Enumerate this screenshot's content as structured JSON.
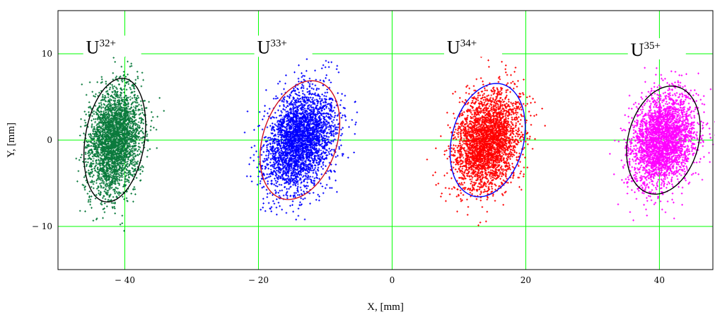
{
  "chart_data": {
    "type": "scatter",
    "title": "",
    "xlabel": "X, [mm]",
    "ylabel": "Y, [mm]",
    "xlim": [
      -50,
      48
    ],
    "ylim": [
      -15,
      15
    ],
    "grid": true,
    "grid_color": "#00ff00",
    "x_ticks": [
      -40,
      -20,
      0,
      20,
      40
    ],
    "y_ticks": [
      10,
      0,
      -10
    ],
    "x_tick_labels": [
      "− 40",
      "− 20",
      "0",
      "20",
      "40"
    ],
    "y_tick_labels": [
      "10",
      "0",
      "− 10"
    ],
    "series": [
      {
        "name": "U32+",
        "base": "U",
        "charge": "32+",
        "color": "#0a7a3c",
        "ellipse_color": "#000000",
        "center": [
          -41.5,
          0.0
        ],
        "ellipse": {
          "a": 7.3,
          "b": 4.4,
          "angle_deg": 76
        },
        "label_pos": [
          -45.8,
          10.3
        ]
      },
      {
        "name": "U33+",
        "base": "U",
        "charge": "33+",
        "color": "#0000ff",
        "ellipse_color": "#d0101e",
        "center": [
          -13.8,
          0.0
        ],
        "ellipse": {
          "a": 7.4,
          "b": 5.3,
          "angle_deg": 58
        },
        "label_pos": [
          -20.2,
          10.3
        ]
      },
      {
        "name": "U34+",
        "base": "U",
        "charge": "34+",
        "color": "#ff0000",
        "ellipse_color": "#0000ff",
        "center": [
          14.3,
          0.0
        ],
        "ellipse": {
          "a": 6.9,
          "b": 5.2,
          "angle_deg": 62
        },
        "label_pos": [
          8.2,
          10.3
        ]
      },
      {
        "name": "U35+",
        "base": "U",
        "charge": "35+",
        "color": "#ff00ff",
        "ellipse_color": "#000000",
        "center": [
          40.6,
          0.0
        ],
        "ellipse": {
          "a": 6.6,
          "b": 5.1,
          "angle_deg": 60
        },
        "label_pos": [
          35.7,
          10.0
        ]
      }
    ]
  }
}
